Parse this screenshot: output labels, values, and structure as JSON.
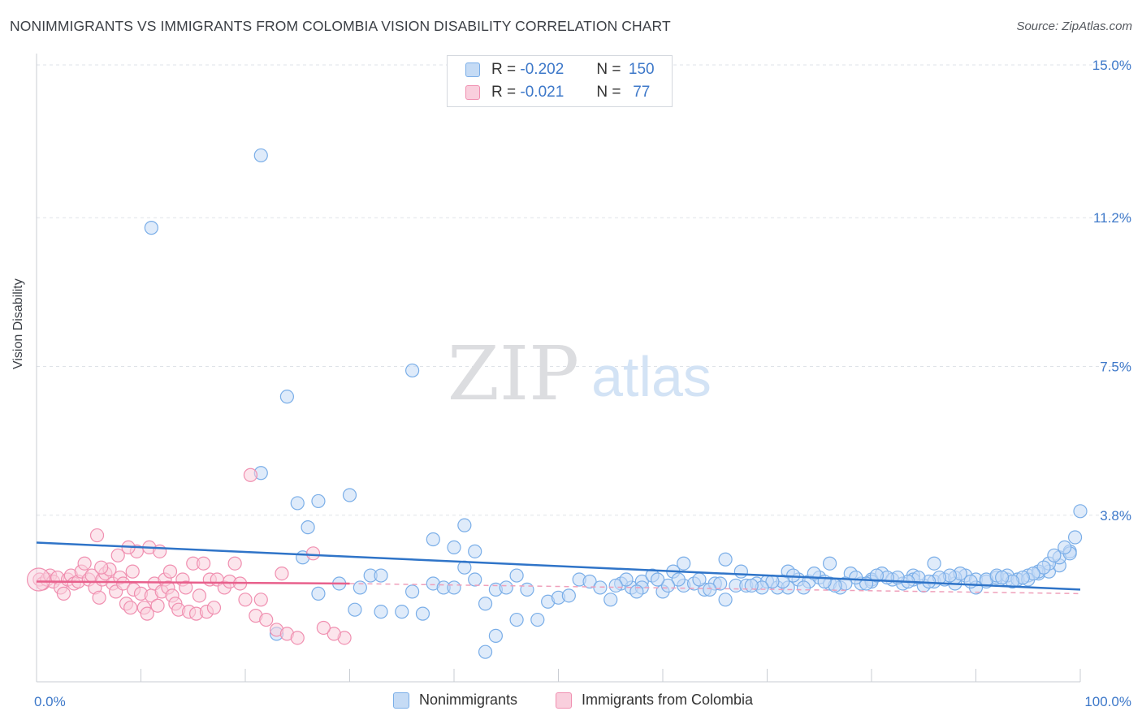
{
  "title": "NONIMMIGRANTS VS IMMIGRANTS FROM COLOMBIA VISION DISABILITY CORRELATION CHART",
  "source": "Source: ZipAtlas.com",
  "watermark": {
    "zip": "ZIP",
    "atlas": "atlas"
  },
  "legend": {
    "rows": [
      {
        "r_label": "R =",
        "r_value": "-0.202",
        "n_label": "N =",
        "n_value": "150",
        "color": "#7aaee8",
        "fill": "#c5dbf5"
      },
      {
        "r_label": "R =",
        "r_value": "-0.021",
        "n_label": "N =",
        "n_value": "77",
        "color": "#f08fb0",
        "fill": "#f9cfdd"
      }
    ]
  },
  "bottom_legend": [
    "Nonimmigrants",
    "Immigrants from Colombia"
  ],
  "chart_data": {
    "type": "scatter",
    "title": "NONIMMIGRANTS VS IMMIGRANTS FROM COLOMBIA VISION DISABILITY CORRELATION CHART",
    "xlabel": "",
    "ylabel": "Vision Disability",
    "xlim": [
      0,
      100
    ],
    "ylim": [
      0,
      15
    ],
    "x_tick_labels": [
      "0.0%",
      "100.0%"
    ],
    "y_ticks": [
      3.8,
      7.5,
      11.2,
      15.0
    ],
    "y_tick_labels": [
      "3.8%",
      "7.5%",
      "11.2%",
      "15.0%"
    ],
    "grid": true,
    "legend_placement": "top-center",
    "series": [
      {
        "name": "Nonimmigrants",
        "color": "#7aaee8",
        "fill": "#c5dbf5",
        "trend": {
          "x": [
            0,
            100
          ],
          "y": [
            3.12,
            1.95
          ]
        },
        "points": [
          [
            21.5,
            12.75
          ],
          [
            11,
            10.95
          ],
          [
            24,
            6.75
          ],
          [
            36,
            7.4
          ],
          [
            21.5,
            4.85
          ],
          [
            25,
            4.1
          ],
          [
            27,
            4.15
          ],
          [
            30,
            4.3
          ],
          [
            26,
            3.5
          ],
          [
            41,
            3.55
          ],
          [
            38,
            3.2
          ],
          [
            40,
            3.0
          ],
          [
            42,
            2.9
          ],
          [
            25.5,
            2.75
          ],
          [
            32,
            2.3
          ],
          [
            33,
            2.3
          ],
          [
            31,
            2.0
          ],
          [
            29,
            2.1
          ],
          [
            27,
            1.85
          ],
          [
            30.5,
            1.45
          ],
          [
            33,
            1.4
          ],
          [
            35,
            1.4
          ],
          [
            37,
            1.35
          ],
          [
            36,
            1.9
          ],
          [
            38,
            2.1
          ],
          [
            39,
            2.0
          ],
          [
            40,
            2.0
          ],
          [
            41,
            2.5
          ],
          [
            42,
            2.2
          ],
          [
            43,
            1.6
          ],
          [
            44,
            1.95
          ],
          [
            45,
            2.0
          ],
          [
            46,
            2.3
          ],
          [
            47,
            1.95
          ],
          [
            48,
            1.2
          ],
          [
            49,
            1.65
          ],
          [
            50,
            1.75
          ],
          [
            51,
            1.8
          ],
          [
            52,
            2.2
          ],
          [
            53,
            2.15
          ],
          [
            54,
            2.0
          ],
          [
            55,
            1.7
          ],
          [
            56,
            2.1
          ],
          [
            57,
            2.0
          ],
          [
            58,
            2.15
          ],
          [
            59,
            2.3
          ],
          [
            60,
            1.9
          ],
          [
            61,
            2.4
          ],
          [
            62,
            2.05
          ],
          [
            63,
            2.1
          ],
          [
            64,
            1.95
          ],
          [
            65,
            2.1
          ],
          [
            66,
            1.7
          ],
          [
            67,
            2.05
          ],
          [
            68,
            2.05
          ],
          [
            69,
            2.1
          ],
          [
            70,
            2.15
          ],
          [
            71,
            2.0
          ],
          [
            72,
            2.4
          ],
          [
            73,
            2.2
          ],
          [
            74,
            2.15
          ],
          [
            75,
            2.25
          ],
          [
            76,
            2.1
          ],
          [
            77,
            2.0
          ],
          [
            78,
            2.35
          ],
          [
            79,
            2.1
          ],
          [
            80,
            2.2
          ],
          [
            81,
            2.35
          ],
          [
            82,
            2.2
          ],
          [
            83,
            2.1
          ],
          [
            84,
            2.3
          ],
          [
            85,
            2.05
          ],
          [
            86,
            2.15
          ],
          [
            87,
            2.2
          ],
          [
            88,
            2.1
          ],
          [
            89,
            2.3
          ],
          [
            90,
            2.2
          ],
          [
            91,
            2.15
          ],
          [
            92,
            2.25
          ],
          [
            93,
            2.2
          ],
          [
            94,
            2.2
          ],
          [
            95,
            2.3
          ],
          [
            96,
            2.35
          ],
          [
            97,
            2.4
          ],
          [
            98,
            2.55
          ],
          [
            99,
            2.9
          ],
          [
            99.5,
            3.25
          ],
          [
            100,
            3.9
          ],
          [
            23,
            0.85
          ],
          [
            43,
            0.4
          ],
          [
            44,
            0.8
          ],
          [
            46,
            1.2
          ],
          [
            58,
            2.0
          ],
          [
            62,
            2.6
          ],
          [
            66,
            2.7
          ],
          [
            72,
            2.0
          ],
          [
            76,
            2.6
          ],
          [
            80,
            2.15
          ],
          [
            84,
            2.2
          ],
          [
            86,
            2.6
          ],
          [
            88,
            2.25
          ],
          [
            90,
            2.0
          ],
          [
            91,
            2.2
          ],
          [
            92,
            2.3
          ],
          [
            93,
            2.3
          ],
          [
            94,
            2.2
          ],
          [
            95,
            2.2
          ],
          [
            96,
            2.4
          ],
          [
            97,
            2.6
          ],
          [
            98,
            2.75
          ],
          [
            99,
            2.85
          ],
          [
            98.5,
            3.0
          ],
          [
            97.5,
            2.8
          ],
          [
            96.5,
            2.5
          ],
          [
            95.5,
            2.35
          ],
          [
            94.5,
            2.25
          ],
          [
            93.5,
            2.15
          ],
          [
            92.5,
            2.25
          ],
          [
            89.5,
            2.15
          ],
          [
            88.5,
            2.35
          ],
          [
            87.5,
            2.3
          ],
          [
            86.5,
            2.25
          ],
          [
            85.5,
            2.15
          ],
          [
            84.5,
            2.25
          ],
          [
            83.5,
            2.15
          ],
          [
            82.5,
            2.25
          ],
          [
            81.5,
            2.25
          ],
          [
            80.5,
            2.3
          ],
          [
            79.5,
            2.1
          ],
          [
            78.5,
            2.25
          ],
          [
            77.5,
            2.1
          ],
          [
            76.5,
            2.05
          ],
          [
            75.5,
            2.15
          ],
          [
            74.5,
            2.35
          ],
          [
            73.5,
            2.0
          ],
          [
            72.5,
            2.3
          ],
          [
            71.5,
            2.15
          ],
          [
            70.5,
            2.15
          ],
          [
            69.5,
            2.0
          ],
          [
            68.5,
            2.05
          ],
          [
            67.5,
            2.4
          ],
          [
            65.5,
            2.1
          ],
          [
            64.5,
            1.95
          ],
          [
            63.5,
            2.2
          ],
          [
            61.5,
            2.2
          ],
          [
            60.5,
            2.05
          ],
          [
            59.5,
            2.2
          ],
          [
            57.5,
            1.9
          ],
          [
            56.5,
            2.2
          ],
          [
            55.5,
            2.05
          ]
        ]
      },
      {
        "name": "Immigrants from Colombia",
        "color": "#f08fb0",
        "fill": "#f9cfdd",
        "trend": {
          "x": [
            0,
            30
          ],
          "y": [
            2.15,
            2.1
          ]
        },
        "points": [
          [
            0.3,
            2.2
          ],
          [
            0.6,
            2.1
          ],
          [
            1,
            2.2
          ],
          [
            1.3,
            2.3
          ],
          [
            1.6,
            2.15
          ],
          [
            2,
            2.25
          ],
          [
            2.3,
            2.0
          ],
          [
            2.6,
            1.85
          ],
          [
            3,
            2.2
          ],
          [
            3.3,
            2.3
          ],
          [
            3.6,
            2.1
          ],
          [
            4,
            2.15
          ],
          [
            4.3,
            2.4
          ],
          [
            4.6,
            2.6
          ],
          [
            5,
            2.2
          ],
          [
            5.3,
            2.3
          ],
          [
            5.6,
            2.0
          ],
          [
            6,
            1.75
          ],
          [
            6.3,
            2.2
          ],
          [
            6.6,
            2.35
          ],
          [
            7,
            2.45
          ],
          [
            7.3,
            2.1
          ],
          [
            7.6,
            1.9
          ],
          [
            8,
            2.25
          ],
          [
            8.3,
            2.1
          ],
          [
            8.6,
            1.6
          ],
          [
            9,
            1.5
          ],
          [
            9.3,
            1.95
          ],
          [
            9.6,
            2.9
          ],
          [
            10,
            1.85
          ],
          [
            10.3,
            1.5
          ],
          [
            10.6,
            1.35
          ],
          [
            11,
            1.8
          ],
          [
            11.3,
            2.1
          ],
          [
            11.6,
            1.55
          ],
          [
            12,
            1.9
          ],
          [
            12.3,
            2.2
          ],
          [
            12.6,
            2.0
          ],
          [
            13,
            1.8
          ],
          [
            13.3,
            1.6
          ],
          [
            13.6,
            1.45
          ],
          [
            14,
            2.2
          ],
          [
            14.3,
            2.0
          ],
          [
            14.6,
            1.4
          ],
          [
            15,
            2.6
          ],
          [
            15.3,
            1.35
          ],
          [
            15.6,
            1.8
          ],
          [
            16,
            2.6
          ],
          [
            16.3,
            1.4
          ],
          [
            16.6,
            2.2
          ],
          [
            17,
            1.5
          ],
          [
            17.3,
            2.2
          ],
          [
            18,
            2.0
          ],
          [
            19,
            2.6
          ],
          [
            20,
            1.7
          ],
          [
            21,
            1.3
          ],
          [
            22,
            1.2
          ],
          [
            23,
            0.95
          ],
          [
            24,
            0.85
          ],
          [
            25,
            0.75
          ],
          [
            6.2,
            2.5
          ],
          [
            7.8,
            2.8
          ],
          [
            8.8,
            3.0
          ],
          [
            5.8,
            3.3
          ],
          [
            9.2,
            2.4
          ],
          [
            10.8,
            3.0
          ],
          [
            11.8,
            2.9
          ],
          [
            12.8,
            2.4
          ],
          [
            20.5,
            4.8
          ],
          [
            23.5,
            2.35
          ],
          [
            26.5,
            2.85
          ],
          [
            29.5,
            0.75
          ],
          [
            28.5,
            0.85
          ],
          [
            27.5,
            1.0
          ],
          [
            21.5,
            1.7
          ],
          [
            18.5,
            2.15
          ],
          [
            19.5,
            2.1
          ]
        ]
      }
    ]
  }
}
